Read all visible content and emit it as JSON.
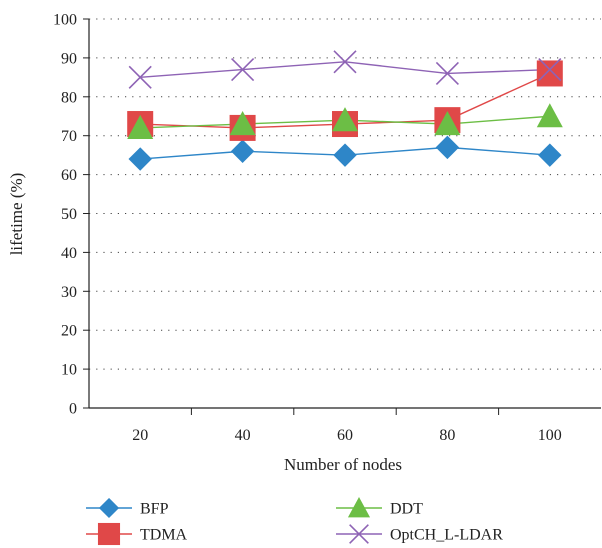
{
  "chart_data": {
    "type": "line",
    "title": "",
    "xlabel": "Number of nodes",
    "ylabel": "lifetime (%)",
    "categories": [
      "20",
      "40",
      "60",
      "80",
      "100"
    ],
    "ylim": [
      0,
      100
    ],
    "yticks": [
      "0",
      "10",
      "20",
      "30",
      "40",
      "50",
      "60",
      "70",
      "80",
      "90",
      "100"
    ],
    "grid": "horizontal dotted",
    "legend_position": "bottom",
    "series": [
      {
        "name": "BFP",
        "values": [
          64,
          66,
          65,
          67,
          65
        ],
        "color": "#2e86c8",
        "marker": "diamond"
      },
      {
        "name": "TDMA",
        "values": [
          73,
          72,
          73,
          74,
          86
        ],
        "color": "#e04848",
        "marker": "square"
      },
      {
        "name": "DDT",
        "values": [
          72,
          73,
          74,
          73,
          75
        ],
        "color": "#6cbe45",
        "marker": "triangle"
      },
      {
        "name": "OptCH_L-LDAR",
        "values": [
          85,
          87,
          89,
          86,
          87
        ],
        "color": "#8e63b5",
        "marker": "x"
      }
    ]
  }
}
